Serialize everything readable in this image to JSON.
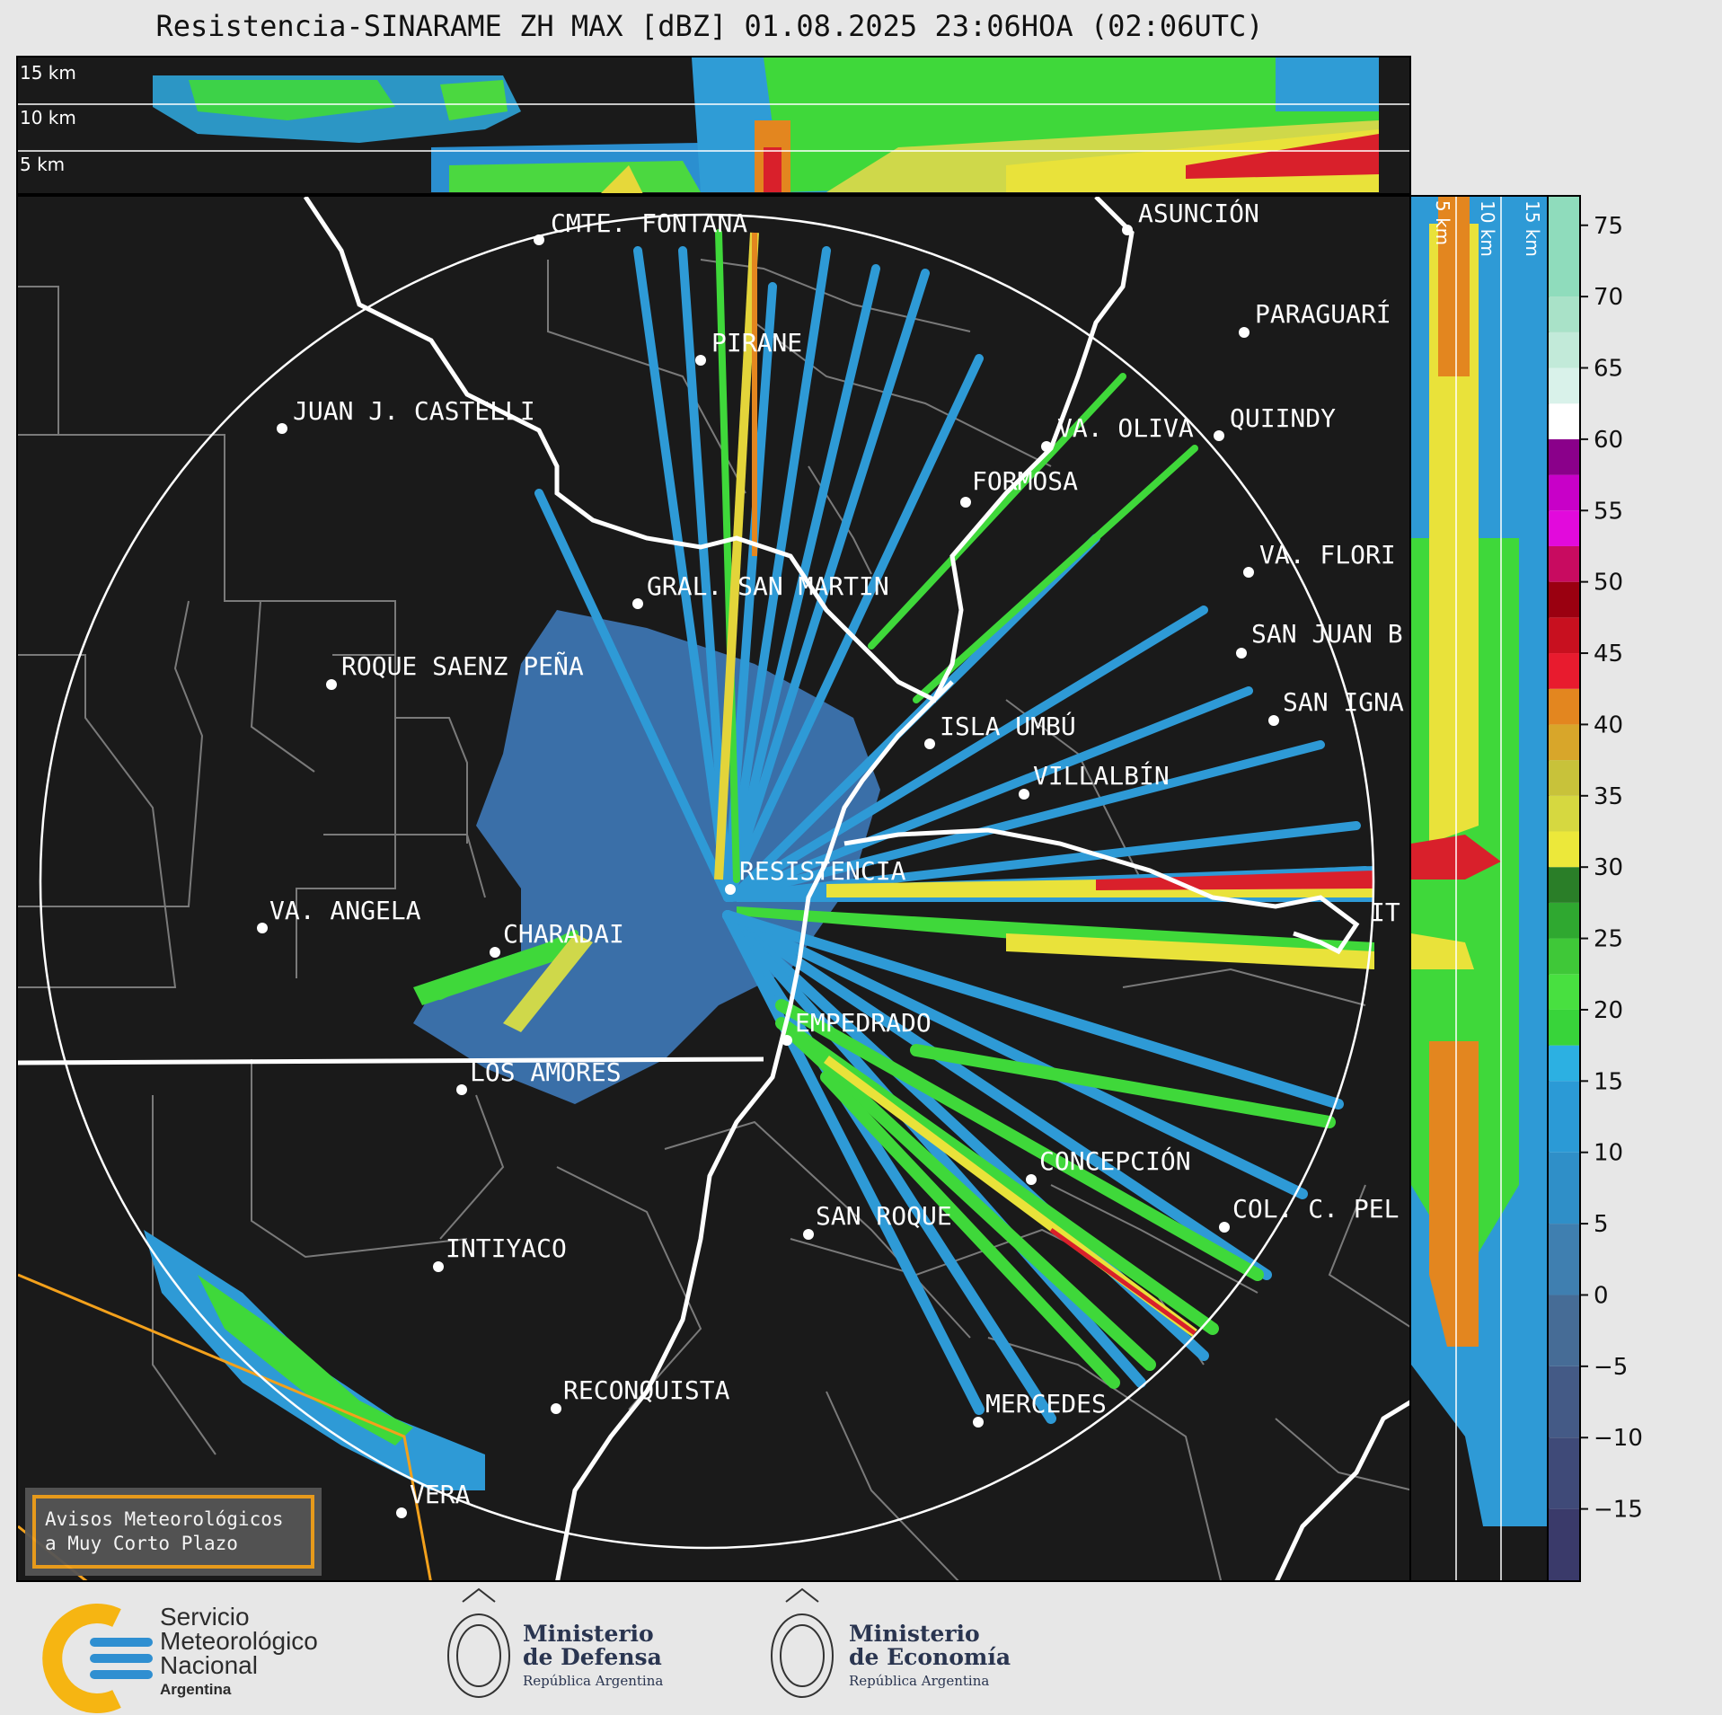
{
  "title": "Resistencia-SINARAME ZH MAX [dBZ] 01.08.2025 23:06HOA (02:06UTC)",
  "top_panel": {
    "altitudes": [
      "15 km",
      "10 km",
      "5 km"
    ]
  },
  "side_panel": {
    "altitudes": [
      "5 km",
      "10 km",
      "15 km"
    ]
  },
  "cities": [
    {
      "name": "CMTE. FONTANA"
    },
    {
      "name": "ASUNCIÓN"
    },
    {
      "name": "PIRANE"
    },
    {
      "name": "PARAGUARÍ"
    },
    {
      "name": "JUAN J. CASTELLI"
    },
    {
      "name": "VA. OLIVA"
    },
    {
      "name": "QUIINDY"
    },
    {
      "name": "FORMOSA"
    },
    {
      "name": "VA. FLORI"
    },
    {
      "name": "GRAL. SAN MARTIN"
    },
    {
      "name": "SAN JUAN B"
    },
    {
      "name": "ROQUE SAENZ PEÑA"
    },
    {
      "name": "SAN IGNA"
    },
    {
      "name": "ISLA UMBÚ"
    },
    {
      "name": "VILLALBÍN"
    },
    {
      "name": "RESISTENCIA"
    },
    {
      "name": "VA. ANGELA"
    },
    {
      "name": "CHARADAI"
    },
    {
      "name": "IT"
    },
    {
      "name": "EMPEDRADO"
    },
    {
      "name": "LOS AMORES"
    },
    {
      "name": "CONCEPCIÓN"
    },
    {
      "name": "COL. C. PEL"
    },
    {
      "name": "SAN ROQUE"
    },
    {
      "name": "INTIYACO"
    },
    {
      "name": "RECONQUISTA"
    },
    {
      "name": "MERCEDES"
    },
    {
      "name": "VERA"
    }
  ],
  "colorbar": {
    "ticks": [
      "75",
      "70",
      "65",
      "60",
      "55",
      "50",
      "45",
      "40",
      "35",
      "30",
      "25",
      "20",
      "15",
      "10",
      "5",
      "0",
      "−5",
      "−10",
      "−15"
    ],
    "tick_values": [
      75,
      70,
      65,
      60,
      55,
      50,
      45,
      40,
      35,
      30,
      25,
      20,
      15,
      10,
      5,
      0,
      -5,
      -10,
      -15
    ],
    "range": [
      -20,
      77
    ]
  },
  "avisos": {
    "line1": "Avisos Meteorológicos",
    "line2": "a Muy Corto Plazo"
  },
  "logos": {
    "smn": {
      "line1": "Servicio",
      "line2": "Meteorológico",
      "line3": "Nacional",
      "line4": "Argentina"
    },
    "defensa": {
      "line1": "Ministerio",
      "line2": "de Defensa",
      "line3": "República Argentina"
    },
    "economia": {
      "line1": "Ministerio",
      "line2": "de Economía",
      "line3": "República Argentina"
    }
  },
  "colors": {
    "accent_orange": "#f3a11c",
    "smn_blue": "#2f8fd1",
    "smn_yellow": "#f6b512"
  }
}
